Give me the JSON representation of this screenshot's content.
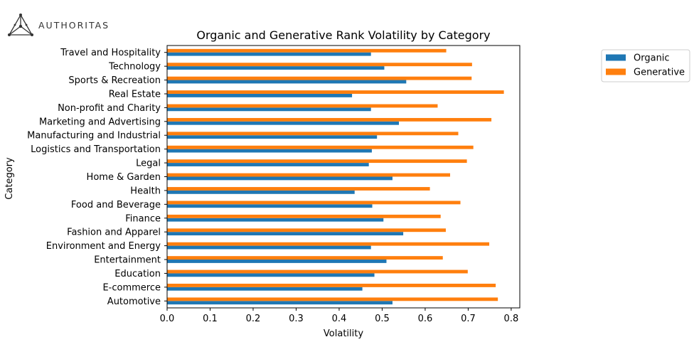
{
  "logo": {
    "text": "AUTHORITAS"
  },
  "chart_data": {
    "type": "bar",
    "orientation": "horizontal",
    "title": "Organic and Generative Rank Volatility by Category",
    "xlabel": "Volatility",
    "ylabel": "Category",
    "xlim": [
      0,
      0.82
    ],
    "xticks": [
      "0.0",
      "0.1",
      "0.2",
      "0.3",
      "0.4",
      "0.5",
      "0.6",
      "0.7",
      "0.8"
    ],
    "grid": false,
    "legend_position": "outside-right",
    "categories": [
      "Automotive",
      "E-commerce",
      "Education",
      "Entertainment",
      "Environment and Energy",
      "Fashion and Apparel",
      "Finance",
      "Food and Beverage",
      "Health",
      "Home & Garden",
      "Legal",
      "Logistics and Transportation",
      "Manufacturing and Industrial",
      "Marketing and Advertising",
      "Non-profit and Charity",
      "Real Estate",
      "Sports & Recreation",
      "Technology",
      "Travel and Hospitality"
    ],
    "series": [
      {
        "name": "Organic",
        "color": "#1f77b4",
        "values": [
          0.524,
          0.454,
          0.482,
          0.51,
          0.474,
          0.549,
          0.503,
          0.477,
          0.436,
          0.524,
          0.469,
          0.476,
          0.488,
          0.539,
          0.474,
          0.43,
          0.556,
          0.505,
          0.474
        ]
      },
      {
        "name": "Generative",
        "color": "#ff7f0e",
        "values": [
          0.769,
          0.764,
          0.699,
          0.641,
          0.749,
          0.648,
          0.636,
          0.682,
          0.611,
          0.658,
          0.697,
          0.712,
          0.677,
          0.754,
          0.629,
          0.783,
          0.708,
          0.709,
          0.649
        ]
      }
    ]
  }
}
